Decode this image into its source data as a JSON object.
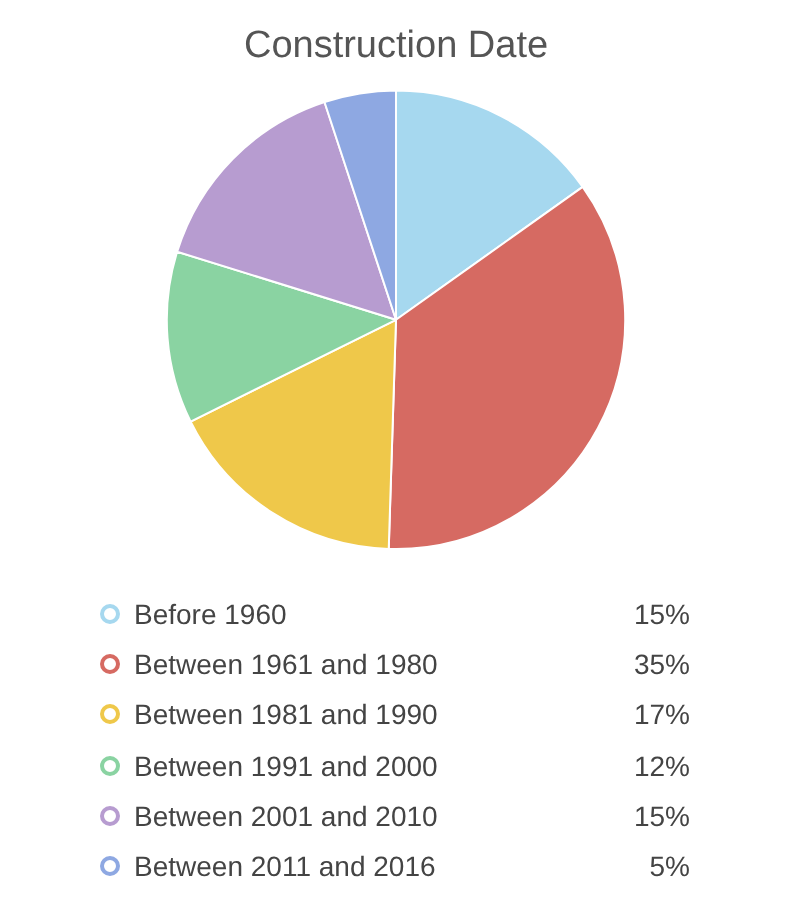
{
  "chart_data": {
    "type": "pie",
    "title": "Construction Date",
    "categories": [
      "Before 1960",
      "Between 1961 and 1980",
      "Between 1981 and 1990",
      "Between 1991 and 2000",
      "Between 2001 and 2010",
      "Between 2011 and 2016"
    ],
    "values": [
      15,
      35,
      17,
      12,
      15,
      5
    ],
    "colors": [
      "#a6d8ef",
      "#d66a62",
      "#efc84a",
      "#8ad3a2",
      "#b79cd0",
      "#8ea8e2"
    ],
    "value_labels": [
      "15%",
      "35%",
      "17%",
      "12%",
      "15%",
      "5%"
    ],
    "legend": "bottom"
  }
}
